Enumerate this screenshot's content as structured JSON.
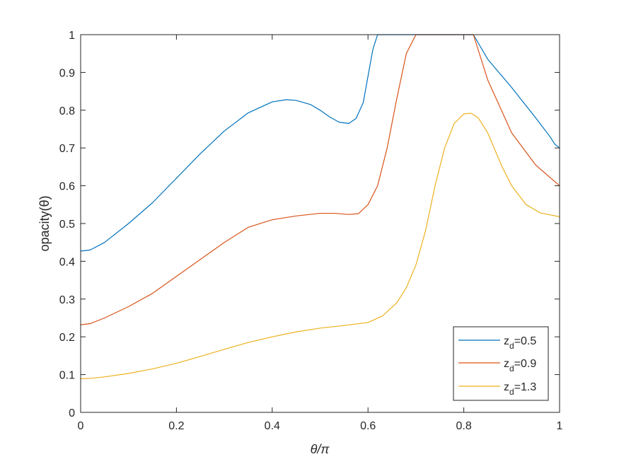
{
  "chart_data": {
    "type": "line",
    "title": "",
    "xlabel": "θ/π",
    "ylabel": "opacity(θ)",
    "xlim": [
      0,
      1
    ],
    "ylim": [
      0,
      1
    ],
    "xticks": [
      0,
      0.2,
      0.4,
      0.6,
      0.8,
      1
    ],
    "xtick_labels": [
      "0",
      "0.2",
      "0.4",
      "0.6",
      "0.8",
      "1"
    ],
    "yticks": [
      0,
      0.1,
      0.2,
      0.3,
      0.4,
      0.5,
      0.6,
      0.7,
      0.8,
      0.9,
      1
    ],
    "ytick_labels": [
      "0",
      "0.1",
      "0.2",
      "0.3",
      "0.4",
      "0.5",
      "0.6",
      "0.7",
      "0.8",
      "0.9",
      "1"
    ],
    "grid": false,
    "legend_position": "bottom-right",
    "series": [
      {
        "name": "z_d=0.5",
        "legend_base": "z",
        "legend_sub": "d",
        "legend_rest": "=0.5",
        "color": "#0072BD",
        "x": [
          0,
          0.02,
          0.05,
          0.1,
          0.15,
          0.2,
          0.25,
          0.3,
          0.35,
          0.4,
          0.43,
          0.45,
          0.48,
          0.5,
          0.52,
          0.54,
          0.56,
          0.575,
          0.59,
          0.6,
          0.61,
          0.62,
          0.65,
          0.7,
          0.75,
          0.8,
          0.82,
          0.85,
          0.9,
          0.95,
          0.98,
          0.99,
          1
        ],
        "y": [
          0.427,
          0.43,
          0.45,
          0.5,
          0.555,
          0.62,
          0.685,
          0.745,
          0.793,
          0.822,
          0.828,
          0.826,
          0.815,
          0.8,
          0.782,
          0.768,
          0.765,
          0.778,
          0.82,
          0.89,
          0.96,
          1,
          1,
          1,
          1,
          1,
          1,
          0.935,
          0.86,
          0.78,
          0.73,
          0.71,
          0.7
        ]
      },
      {
        "name": "z_d=0.9",
        "legend_base": "z",
        "legend_sub": "d",
        "legend_rest": "=0.9",
        "color": "#D95319",
        "x": [
          0,
          0.02,
          0.05,
          0.1,
          0.15,
          0.2,
          0.25,
          0.3,
          0.35,
          0.4,
          0.45,
          0.5,
          0.53,
          0.56,
          0.58,
          0.6,
          0.62,
          0.64,
          0.66,
          0.68,
          0.7,
          0.72,
          0.75,
          0.8,
          0.82,
          0.85,
          0.9,
          0.95,
          1
        ],
        "y": [
          0.232,
          0.235,
          0.25,
          0.28,
          0.315,
          0.36,
          0.405,
          0.45,
          0.49,
          0.51,
          0.52,
          0.527,
          0.527,
          0.524,
          0.526,
          0.55,
          0.6,
          0.7,
          0.83,
          0.95,
          1,
          1,
          1,
          1,
          1,
          0.88,
          0.74,
          0.655,
          0.6
        ]
      },
      {
        "name": "z_d=1.3",
        "legend_base": "z",
        "legend_sub": "d",
        "legend_rest": "=1.3",
        "color": "#EDB120",
        "x": [
          0,
          0.02,
          0.05,
          0.1,
          0.15,
          0.2,
          0.25,
          0.3,
          0.35,
          0.4,
          0.45,
          0.5,
          0.55,
          0.6,
          0.63,
          0.66,
          0.68,
          0.7,
          0.72,
          0.74,
          0.76,
          0.78,
          0.8,
          0.815,
          0.83,
          0.85,
          0.88,
          0.9,
          0.93,
          0.96,
          1
        ],
        "y": [
          0.089,
          0.09,
          0.094,
          0.103,
          0.115,
          0.13,
          0.148,
          0.167,
          0.185,
          0.2,
          0.213,
          0.223,
          0.23,
          0.238,
          0.255,
          0.29,
          0.33,
          0.39,
          0.48,
          0.6,
          0.7,
          0.765,
          0.79,
          0.792,
          0.78,
          0.74,
          0.65,
          0.6,
          0.55,
          0.528,
          0.518
        ]
      }
    ]
  }
}
